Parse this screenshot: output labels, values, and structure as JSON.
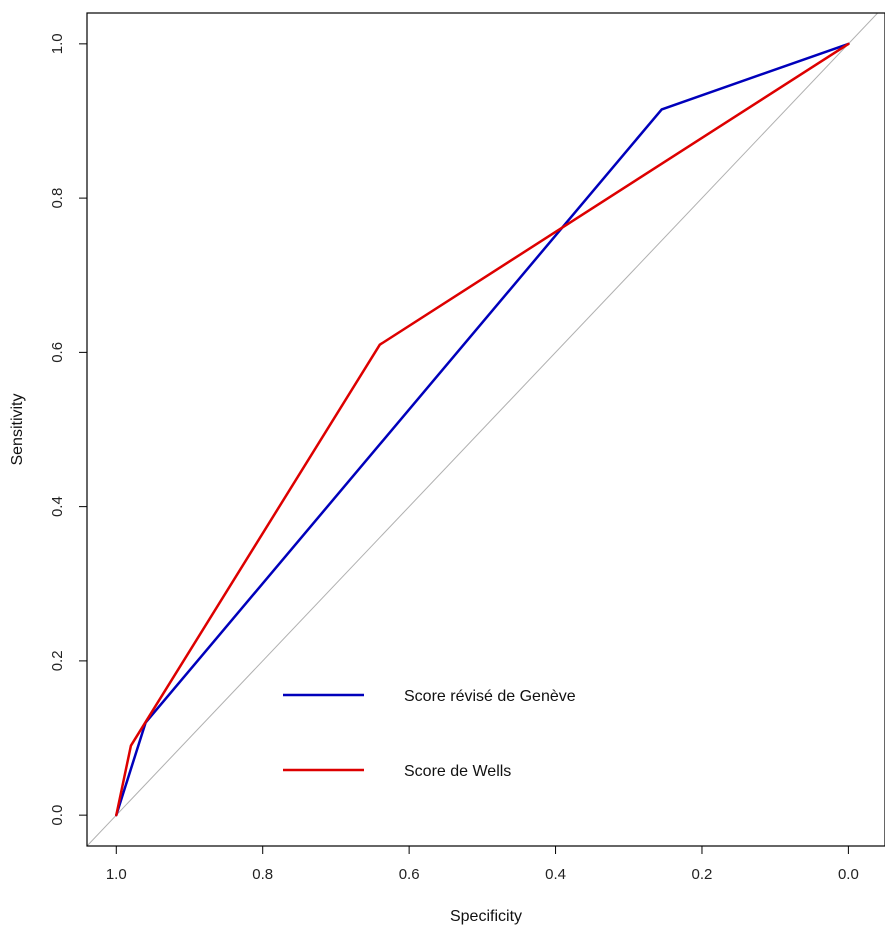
{
  "chart_data": {
    "type": "line",
    "title": "",
    "xlabel": "Specificity",
    "ylabel": "Sensitivity",
    "x_reversed": true,
    "xlim": [
      1.04,
      -0.05
    ],
    "ylim": [
      -0.04,
      1.04
    ],
    "xticks": [
      1.0,
      0.8,
      0.6,
      0.4,
      0.2,
      0.0
    ],
    "xtick_labels": [
      "1.0",
      "0.8",
      "0.6",
      "0.4",
      "0.2",
      "0.0"
    ],
    "yticks": [
      0.0,
      0.2,
      0.4,
      0.6,
      0.8,
      1.0
    ],
    "ytick_labels": [
      "0.0",
      "0.2",
      "0.4",
      "0.6",
      "0.8",
      "1.0"
    ],
    "grid": false,
    "legend_position": "bottom-center",
    "reference_line": {
      "description": "diagonal chance line",
      "color": "#b0b0b0",
      "points": [
        [
          1.05,
          -0.05
        ],
        [
          -0.05,
          1.05
        ]
      ]
    },
    "series": [
      {
        "name": "Score révisé de Genève",
        "color": "#0000bb",
        "x": [
          1.0,
          0.96,
          0.255,
          0.0
        ],
        "y": [
          0.0,
          0.12,
          0.915,
          1.0
        ]
      },
      {
        "name": "Score de Wells",
        "color": "#dd0000",
        "x": [
          1.0,
          0.98,
          0.64,
          0.0
        ],
        "y": [
          0.0,
          0.09,
          0.61,
          1.0
        ]
      }
    ]
  }
}
